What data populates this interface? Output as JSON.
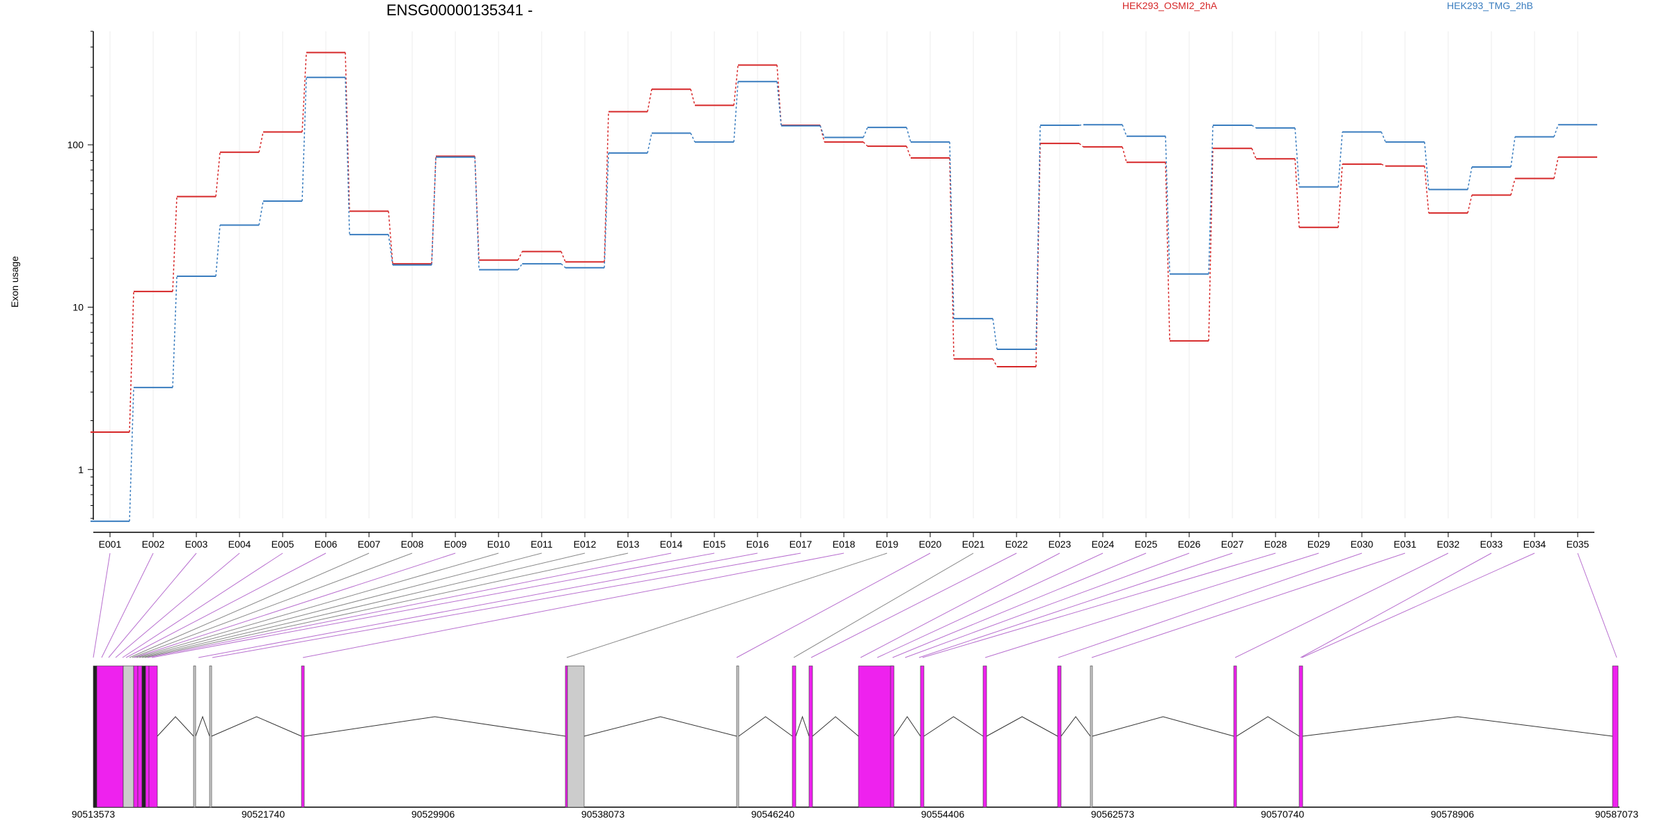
{
  "chart_data": {
    "type": "line",
    "title": "ENSG00000135341 -",
    "xlabel": "",
    "ylabel": "Exon usage",
    "yscale": "log",
    "ylim": [
      0.5,
      500
    ],
    "yticks": [
      1,
      10,
      100
    ],
    "grid": "vertical",
    "legend": "top",
    "categories": [
      "E001",
      "E002",
      "E003",
      "E004",
      "E005",
      "E006",
      "E007",
      "E008",
      "E009",
      "E010",
      "E011",
      "E012",
      "E013",
      "E014",
      "E015",
      "E016",
      "E017",
      "E018",
      "E019",
      "E020",
      "E021",
      "E022",
      "E023",
      "E024",
      "E025",
      "E026",
      "E027",
      "E028",
      "E029",
      "E030",
      "E031",
      "E032",
      "E033",
      "E034",
      "E035"
    ],
    "series": [
      {
        "name": "HEK293_OSMI2_2hA",
        "color": "#d62728",
        "values": [
          1.7,
          12.5,
          48,
          90,
          120,
          370,
          39,
          18.5,
          85,
          19.5,
          22,
          19,
          160,
          220,
          175,
          310,
          132,
          104,
          98,
          83,
          4.8,
          4.3,
          102,
          97,
          78,
          6.2,
          95,
          82,
          31,
          76,
          74,
          38,
          49,
          62,
          84
        ]
      },
      {
        "name": "HEK293_TMG_2hB",
        "color": "#3a7dbf",
        "values": [
          0.48,
          3.2,
          15.5,
          32,
          45,
          260,
          28,
          18.2,
          84,
          17,
          18.5,
          17.5,
          89,
          118,
          104,
          245,
          131,
          111,
          128,
          104,
          8.5,
          5.5,
          132,
          133,
          113,
          16,
          132,
          127,
          55,
          120,
          104,
          53,
          73,
          112,
          133
        ]
      }
    ]
  },
  "gene_model": {
    "coordinate_ticks": [
      "90513573",
      "90521740",
      "90529906",
      "90538073",
      "90546240",
      "90554406",
      "90562573",
      "90570740",
      "90578906",
      "90587073"
    ],
    "colors": {
      "counted_exon": "#ee22ee",
      "uncounted_exon": "#cccccc",
      "connector_counted": "#b86fcf",
      "connector_uncounted": "#888888"
    }
  }
}
